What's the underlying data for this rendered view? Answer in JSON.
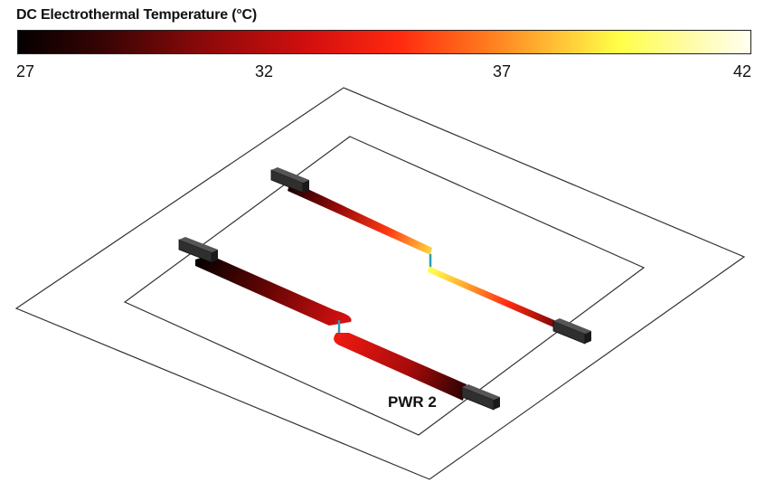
{
  "legend": {
    "title": "DC Electrothermal Temperature (°C)",
    "scale": {
      "min": 27,
      "max": 42
    },
    "ticks": [
      "27",
      "32",
      "37",
      "42"
    ],
    "colors": {
      "cold": "#050000",
      "mid": "#ff2a0f",
      "warm": "#ffff47",
      "hot": "#fffff0"
    }
  },
  "labels": {
    "net": "PWR 2"
  },
  "colors": {
    "outline": "#333333",
    "connector": "#2f2f2f",
    "via": "#2a9db5"
  }
}
